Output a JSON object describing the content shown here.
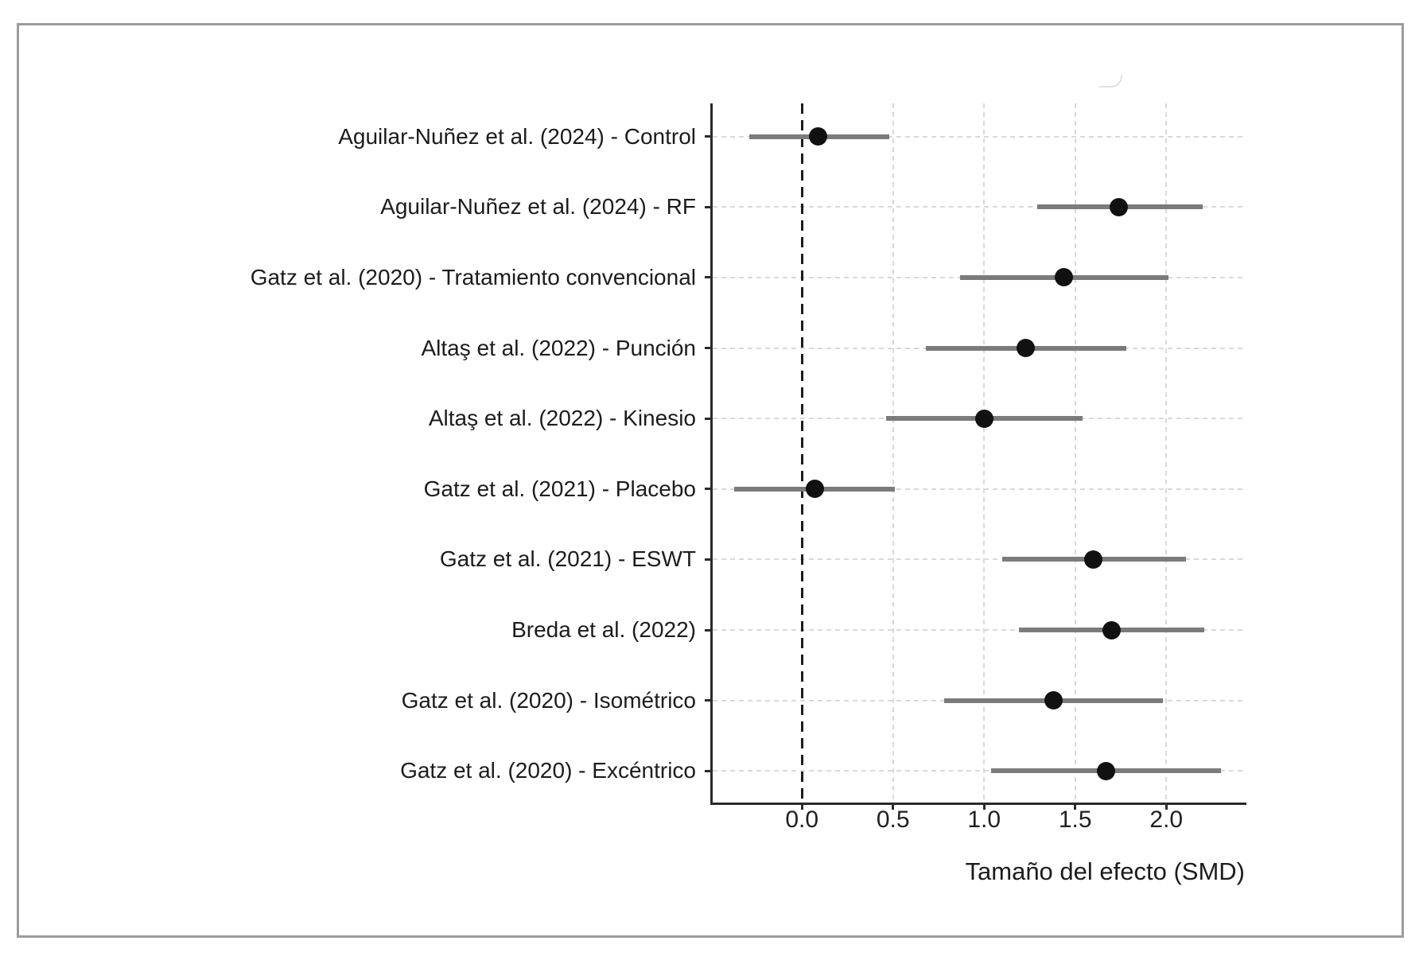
{
  "figure": {
    "background": "#ffffff",
    "border_color": "#9c9c9c"
  },
  "colors": {
    "ci_line": "#7b7b7b",
    "marker": "#111111",
    "gridline": "#d9d9d9",
    "zero_line": "#1c1c1c",
    "axis": "#2b2b2b",
    "text": "#1c1c1c"
  },
  "chart_data": {
    "type": "scatter",
    "variant": "forest-plot",
    "title": "",
    "xlabel": "Tamaño del efecto (SMD)",
    "ylabel": "",
    "xlim": [
      -0.49,
      2.44
    ],
    "x_tick_values": [
      0.0,
      0.5,
      1.0,
      1.5,
      2.0
    ],
    "x_tick_labels": [
      "0.0",
      "0.5",
      "1.0",
      "1.5",
      "2.0"
    ],
    "zero_line_x": 0.0,
    "grid": "dashed gridlines on both axes",
    "legend": "none",
    "rows": [
      {
        "label": "Aguilar-Nuñez et al. (2024) - Control",
        "estimate": 0.09,
        "ci_low": -0.29,
        "ci_high": 0.48
      },
      {
        "label": "Aguilar-Nuñez et al. (2024) - RF",
        "estimate": 1.74,
        "ci_low": 1.29,
        "ci_high": 2.2
      },
      {
        "label": "Gatz et al. (2020) - Tratamiento convencional",
        "estimate": 1.44,
        "ci_low": 0.87,
        "ci_high": 2.01
      },
      {
        "label": "Altaş et al. (2022) - Punción",
        "estimate": 1.23,
        "ci_low": 0.68,
        "ci_high": 1.78
      },
      {
        "label": "Altaş et al. (2022) - Kinesio",
        "estimate": 1.0,
        "ci_low": 0.46,
        "ci_high": 1.54
      },
      {
        "label": "Gatz et al. (2021) - Placebo",
        "estimate": 0.07,
        "ci_low": -0.37,
        "ci_high": 0.51
      },
      {
        "label": "Gatz et al. (2021) - ESWT",
        "estimate": 1.6,
        "ci_low": 1.1,
        "ci_high": 2.11
      },
      {
        "label": "Breda et al. (2022)",
        "estimate": 1.7,
        "ci_low": 1.19,
        "ci_high": 2.21
      },
      {
        "label": "Gatz et al. (2020) - Isométrico",
        "estimate": 1.38,
        "ci_low": 0.78,
        "ci_high": 1.98
      },
      {
        "label": "Gatz et al. (2020) - Excéntrico",
        "estimate": 1.67,
        "ci_low": 1.04,
        "ci_high": 2.3
      }
    ]
  }
}
